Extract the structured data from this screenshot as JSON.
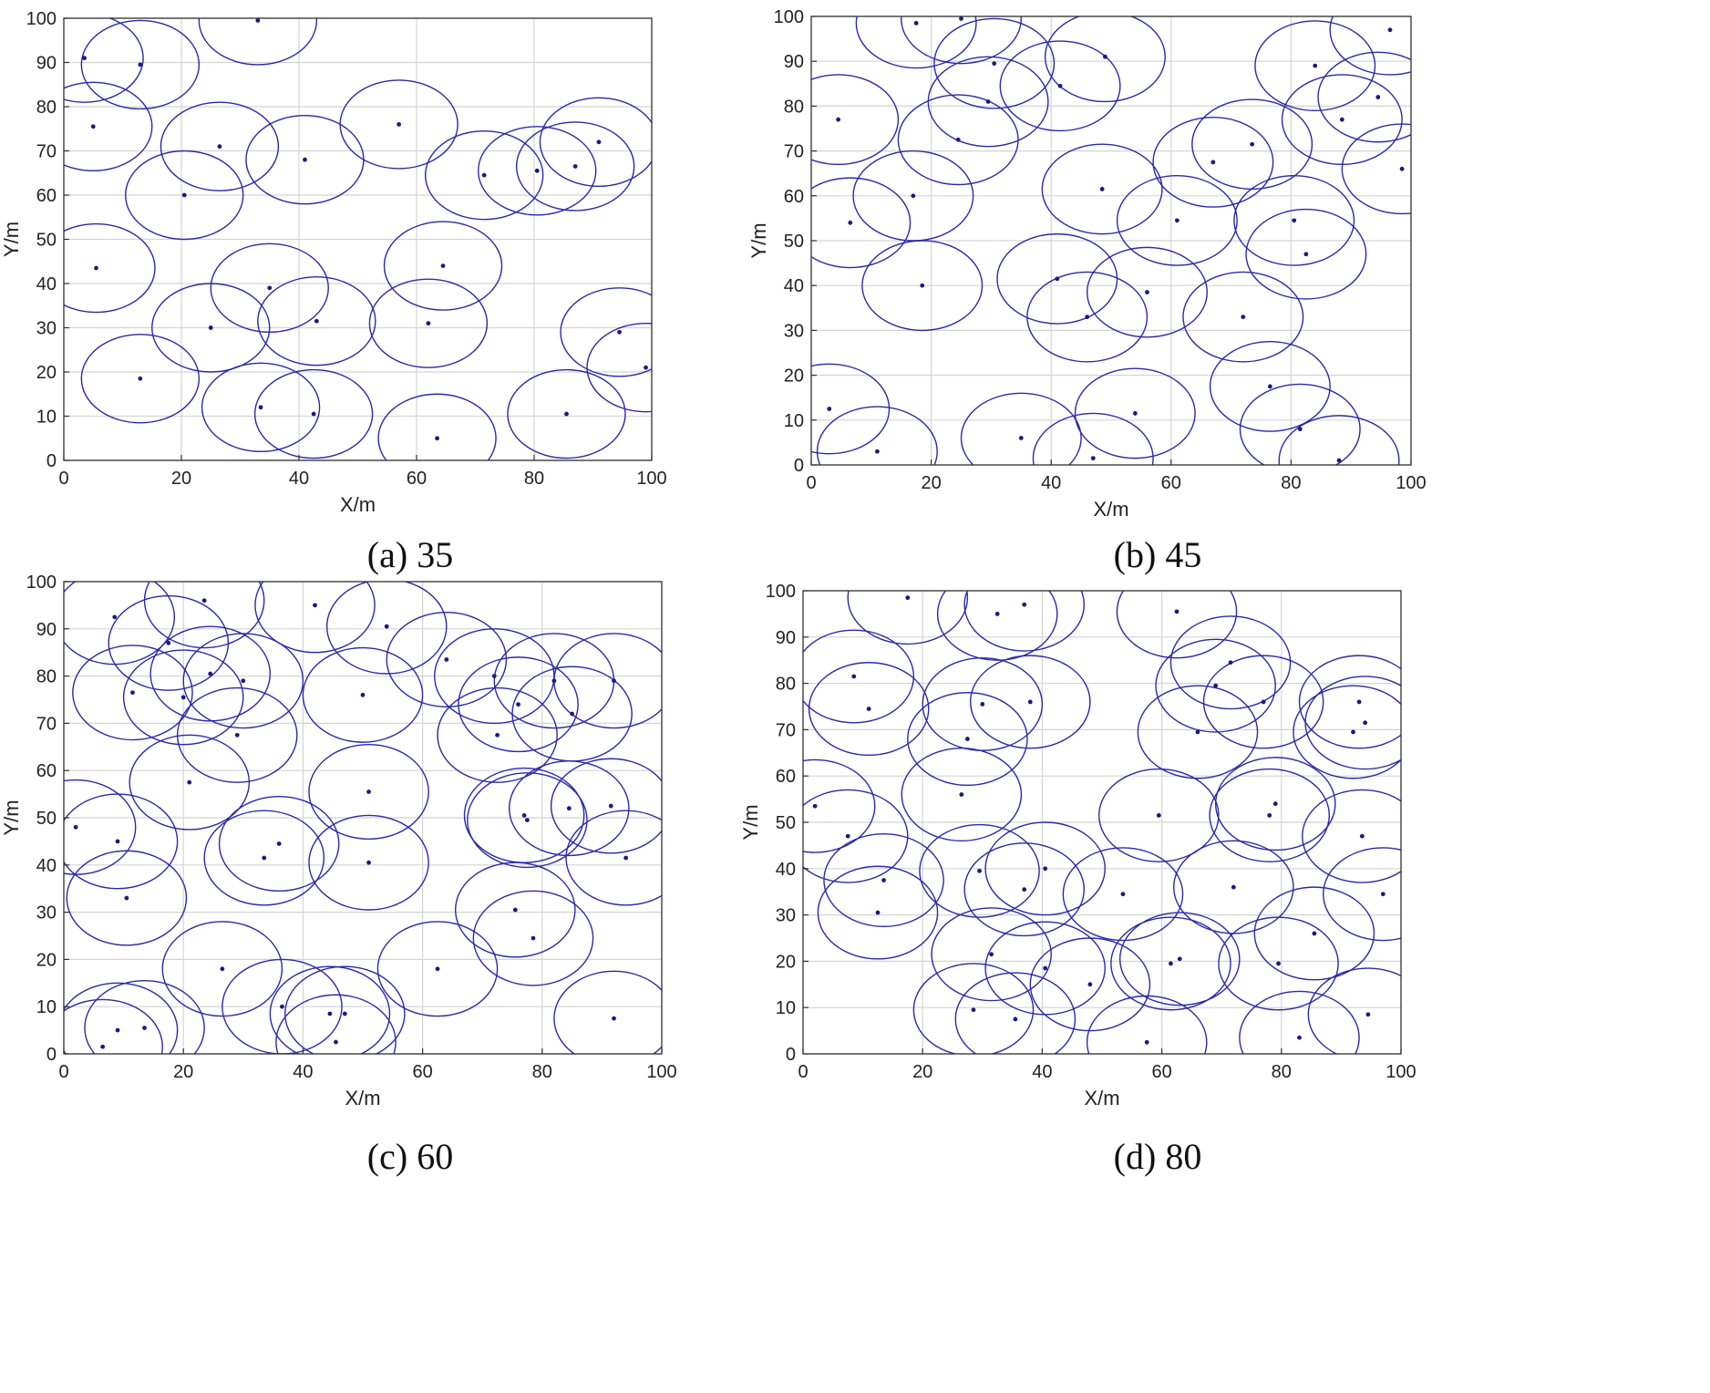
{
  "chart_data": [
    {
      "type": "scatter",
      "caption_label": "(a)",
      "caption_value": "35",
      "xlabel": "X/m",
      "ylabel": "Y/m",
      "xlim": [
        0,
        100
      ],
      "ylim": [
        0,
        100
      ],
      "xticks": [
        "0",
        "20",
        "40",
        "60",
        "80",
        "100"
      ],
      "yticks": [
        "0",
        "10",
        "20",
        "30",
        "40",
        "50",
        "60",
        "70",
        "80",
        "90",
        "100"
      ],
      "grid": true,
      "sensing_radius": 10,
      "color": "#2a2aa8",
      "x": [
        3.5,
        13,
        33,
        5,
        26.5,
        41,
        57,
        20.5,
        71.5,
        80.5,
        87,
        91,
        5.5,
        35,
        64.5,
        25,
        43,
        62,
        94.5,
        99,
        13,
        33.5,
        42.5,
        63.5,
        85.5
      ],
      "y": [
        91,
        89.5,
        99.5,
        75.5,
        71,
        68,
        76,
        60,
        64.5,
        65.5,
        66.5,
        72,
        43.5,
        39,
        44,
        30,
        31.5,
        31,
        29,
        21,
        18.5,
        12,
        10.5,
        5,
        10.5
      ]
    },
    {
      "type": "scatter",
      "caption_label": "(b)",
      "caption_value": "45",
      "xlabel": "X/m",
      "ylabel": "Y/m",
      "xlim": [
        0,
        100
      ],
      "ylim": [
        0,
        100
      ],
      "xticks": [
        "0",
        "20",
        "40",
        "60",
        "80",
        "100"
      ],
      "yticks": [
        "0",
        "10",
        "20",
        "30",
        "40",
        "50",
        "60",
        "70",
        "80",
        "90",
        "100"
      ],
      "grid": true,
      "sensing_radius": 10,
      "color": "#2a2aa8",
      "x": [
        17.5,
        25,
        30.5,
        41.5,
        49,
        84,
        96.5,
        4.5,
        29.5,
        24.5,
        94.5,
        88.5,
        17,
        6.5,
        48.5,
        73.5,
        67,
        98.5,
        61,
        80.5,
        82.5,
        18.5,
        41,
        56,
        46,
        72,
        3,
        11,
        35,
        47,
        54,
        76.5,
        81.5,
        88
      ],
      "y": [
        98.5,
        99.5,
        89.5,
        84.5,
        91,
        89,
        97,
        77,
        81,
        72.5,
        82,
        77,
        60,
        54,
        61.5,
        71.5,
        67.5,
        66,
        54.5,
        54.5,
        47,
        40,
        41.5,
        38.5,
        33,
        33,
        12.5,
        3,
        6,
        1.5,
        11.5,
        17.5,
        8,
        1
      ],
      "sensing_radius_note": ""
    },
    {
      "type": "scatter",
      "caption_label": "(c)",
      "caption_value": "60",
      "xlabel": "X/m",
      "ylabel": "Y/m",
      "xlim": [
        0,
        100
      ],
      "ylim": [
        0,
        100
      ],
      "xticks": [
        "0",
        "20",
        "40",
        "60",
        "80",
        "100"
      ],
      "yticks": [
        "0",
        "10",
        "20",
        "30",
        "40",
        "50",
        "60",
        "70",
        "80",
        "90",
        "100"
      ],
      "grid": true,
      "sensing_radius": 10,
      "color": "#2a2aa8",
      "x": [
        8.5,
        23.5,
        42,
        54,
        17.5,
        11.5,
        20,
        24.5,
        30,
        64,
        72,
        82,
        92,
        50,
        76,
        85,
        29,
        72.5,
        21,
        51,
        2,
        9,
        77,
        77.5,
        84.5,
        91.5,
        36,
        33.5,
        10.5,
        51,
        94,
        75.5,
        78.5,
        26.5,
        62.5,
        36.5,
        44.5,
        47,
        9,
        13.5,
        6.5,
        45.5,
        92
      ],
      "y": [
        92.5,
        96,
        95,
        90.5,
        87,
        76.5,
        75.5,
        80.5,
        79,
        83.5,
        80,
        79,
        79,
        76,
        74,
        72,
        67.5,
        67.5,
        57.5,
        55.5,
        48,
        45,
        50.5,
        49.5,
        52,
        52.5,
        44.5,
        41.5,
        33,
        40.5,
        41.5,
        30.5,
        24.5,
        18,
        18,
        10,
        8.5,
        8.5,
        5,
        5.5,
        1.5,
        2.5,
        7.5
      ]
    },
    {
      "type": "scatter",
      "caption_label": "(d)",
      "caption_value": "80",
      "xlabel": "X/m",
      "ylabel": "Y/m",
      "xlim": [
        0,
        100
      ],
      "ylim": [
        0,
        100
      ],
      "xticks": [
        "0",
        "20",
        "40",
        "60",
        "80",
        "100"
      ],
      "yticks": [
        "0",
        "10",
        "20",
        "30",
        "40",
        "50",
        "60",
        "70",
        "80",
        "90",
        "100"
      ],
      "grid": true,
      "sensing_radius": 10,
      "color": "#2a2aa8",
      "x": [
        17.5,
        32.5,
        37,
        62.5,
        8.5,
        11,
        71.5,
        30,
        38,
        69,
        66,
        77,
        93,
        94,
        92,
        27.5,
        26.5,
        2,
        7.5,
        13.5,
        12.5,
        59.5,
        78,
        79,
        93.5,
        29.5,
        40.5,
        37,
        53.5,
        72,
        97,
        31.5,
        85.5,
        61.5,
        63,
        79.5,
        40.5,
        48,
        28.5,
        35.5,
        57.5,
        83,
        94.5
      ],
      "y": [
        98.5,
        95,
        97,
        95.5,
        81.5,
        74.5,
        84.5,
        75.5,
        76,
        79.5,
        69.5,
        76,
        76,
        71.5,
        69.5,
        68,
        56,
        53.5,
        47,
        37.5,
        30.5,
        51.5,
        51.5,
        54,
        47,
        39.5,
        40,
        35.5,
        34.5,
        36,
        34.5,
        21.5,
        26,
        19.5,
        20.5,
        19.5,
        18.5,
        15,
        9.5,
        7.5,
        2.5,
        3.5,
        8.5
      ]
    }
  ]
}
